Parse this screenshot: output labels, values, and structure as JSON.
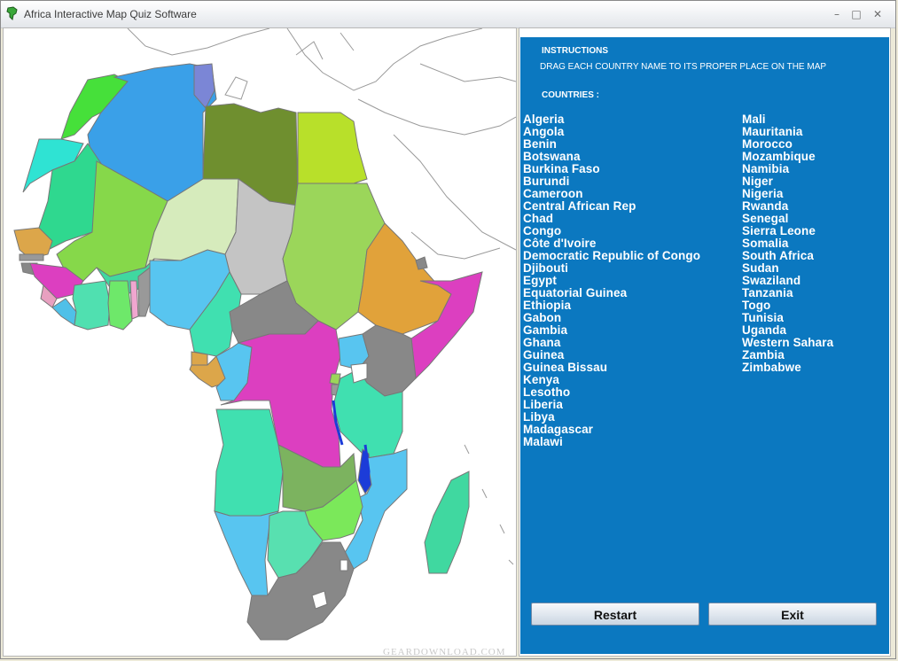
{
  "window": {
    "title": "Africa Interactive Map Quiz Software",
    "controls": {
      "minimize": "–",
      "maximize": "□",
      "close": "✕"
    }
  },
  "panel": {
    "instructions_title": "INSTRUCTIONS",
    "instructions_text": "DRAG EACH COUNTRY NAME TO ITS PROPER PLACE ON THE MAP",
    "countries_title": "COUNTRIES :",
    "countries_col1": [
      "Algeria",
      "Angola",
      "Benin",
      "Botswana",
      "Burkina Faso",
      "Burundi",
      "Cameroon",
      "Central African Rep",
      "Chad",
      "Congo",
      "Côte d'Ivoire",
      "Democratic Republic of Congo",
      "Djibouti",
      "Egypt",
      "Equatorial Guinea",
      "Ethiopia",
      "Gabon",
      "Gambia",
      "Ghana",
      "Guinea",
      "Guinea Bissau",
      "Kenya",
      "Lesotho",
      "Liberia",
      "Libya",
      "Madagascar",
      "Malawi"
    ],
    "countries_col2": [
      "Mali",
      "Mauritania",
      "Morocco",
      "Mozambique",
      "Namibia",
      "Niger",
      "Nigeria",
      "Rwanda",
      "Senegal",
      "Sierra Leone",
      "Somalia",
      "South Africa",
      "Sudan",
      "Swaziland",
      "Tanzania",
      "Togo",
      "Tunisia",
      "Uganda",
      "Western Sahara",
      "Zambia",
      "Zimbabwe"
    ]
  },
  "buttons": {
    "restart": "Restart",
    "exit": "Exit"
  },
  "watermark": "GEARDOWNLOAD.COM",
  "colors": {
    "panel_bg": "#0b78c0",
    "map_bg": "#ffffff"
  }
}
